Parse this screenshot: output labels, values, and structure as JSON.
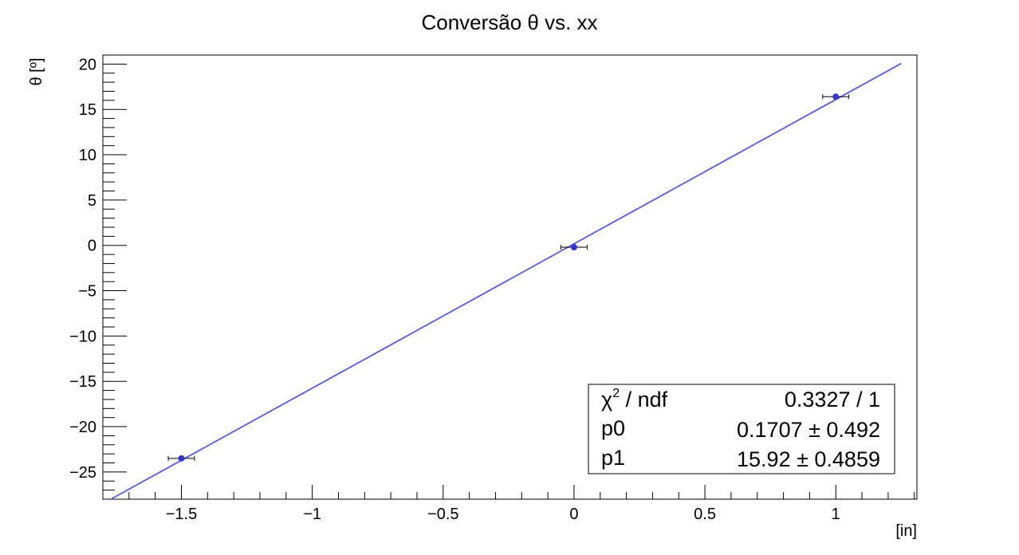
{
  "chart_data": {
    "type": "scatter",
    "title": "Conversão θ vs. xx",
    "xlabel": "[in]",
    "ylabel": "θ [º]",
    "xlim": [
      -1.8,
      1.31
    ],
    "ylim": [
      -28,
      21
    ],
    "xticks": [
      -1.5,
      -1,
      -0.5,
      0,
      0.5,
      1
    ],
    "xtick_labels": [
      "−1.5",
      "−1",
      "−0.5",
      "0",
      "0.5",
      "1"
    ],
    "yticks": [
      -25,
      -20,
      -15,
      -10,
      -5,
      0,
      5,
      10,
      15,
      20
    ],
    "ytick_labels": [
      "−25",
      "−20",
      "−15",
      "−10",
      "−5",
      "0",
      "5",
      "10",
      "15",
      "20"
    ],
    "grid": false,
    "series": [
      {
        "marker_color": "#3535c9",
        "points": [
          {
            "x": -1.5,
            "y": -23.5,
            "xerr": 0.05
          },
          {
            "x": 0.0,
            "y": -0.2,
            "xerr": 0.05
          },
          {
            "x": 1.0,
            "y": 16.4,
            "xerr": 0.05
          }
        ]
      }
    ],
    "fit": {
      "color": "#5a5ad6",
      "p0": 0.1707,
      "p1": 15.92,
      "x_range": [
        -1.8,
        1.25
      ]
    },
    "stats_box": {
      "placement": "bottom-right",
      "rows": [
        {
          "label_main": "χ",
          "label_sup": "2",
          "label_rest": " / ndf",
          "value": "0.3327 / 1"
        },
        {
          "label_main": "p0",
          "label_sup": "",
          "label_rest": "",
          "value": "0.1707 ± 0.492"
        },
        {
          "label_main": "p1",
          "label_sup": "",
          "label_rest": "",
          "value": "15.92 ± 0.4859"
        }
      ]
    }
  }
}
